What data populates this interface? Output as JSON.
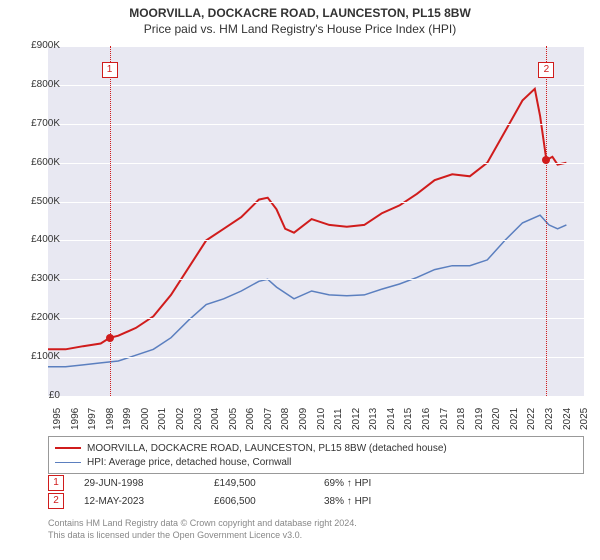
{
  "title": {
    "line1": "MOORVILLA, DOCKACRE ROAD, LAUNCESTON, PL15 8BW",
    "line2": "Price paid vs. HM Land Registry's House Price Index (HPI)"
  },
  "chart": {
    "background": "#e8e8f2",
    "grid_color": "#ffffff",
    "y": {
      "min": 0,
      "max": 900000,
      "step": 100000,
      "labels": [
        "£0",
        "£100K",
        "£200K",
        "£300K",
        "£400K",
        "£500K",
        "£600K",
        "£700K",
        "£800K",
        "£900K"
      ]
    },
    "x": {
      "min": 1995,
      "max": 2025.5,
      "step": 1,
      "labels": [
        "1995",
        "1996",
        "1997",
        "1998",
        "1999",
        "2000",
        "2001",
        "2002",
        "2003",
        "2004",
        "2005",
        "2006",
        "2007",
        "2008",
        "2009",
        "2010",
        "2011",
        "2012",
        "2013",
        "2014",
        "2015",
        "2016",
        "2017",
        "2018",
        "2019",
        "2020",
        "2021",
        "2022",
        "2023",
        "2024",
        "2025"
      ]
    },
    "series": [
      {
        "name": "MOORVILLA, DOCKACRE ROAD, LAUNCESTON, PL15 8BW (detached house)",
        "color": "#d01c1c",
        "width": 2,
        "points": [
          [
            1995,
            120000
          ],
          [
            1996,
            120000
          ],
          [
            1997,
            128000
          ],
          [
            1998,
            135000
          ],
          [
            1998.5,
            149500
          ],
          [
            1999,
            155000
          ],
          [
            2000,
            175000
          ],
          [
            2001,
            205000
          ],
          [
            2002,
            260000
          ],
          [
            2003,
            330000
          ],
          [
            2004,
            400000
          ],
          [
            2005,
            430000
          ],
          [
            2006,
            460000
          ],
          [
            2007,
            505000
          ],
          [
            2007.5,
            510000
          ],
          [
            2008,
            480000
          ],
          [
            2008.5,
            430000
          ],
          [
            2009,
            420000
          ],
          [
            2010,
            455000
          ],
          [
            2011,
            440000
          ],
          [
            2012,
            435000
          ],
          [
            2013,
            440000
          ],
          [
            2014,
            470000
          ],
          [
            2015,
            490000
          ],
          [
            2016,
            520000
          ],
          [
            2017,
            555000
          ],
          [
            2018,
            570000
          ],
          [
            2019,
            565000
          ],
          [
            2020,
            600000
          ],
          [
            2021,
            680000
          ],
          [
            2022,
            760000
          ],
          [
            2022.7,
            790000
          ],
          [
            2023,
            720000
          ],
          [
            2023.36,
            606500
          ],
          [
            2023.7,
            615000
          ],
          [
            2024,
            595000
          ],
          [
            2024.5,
            600000
          ]
        ]
      },
      {
        "name": "HPI: Average price, detached house, Cornwall",
        "color": "#5b7fbf",
        "width": 1.5,
        "points": [
          [
            1995,
            75000
          ],
          [
            1996,
            75000
          ],
          [
            1997,
            80000
          ],
          [
            1998,
            85000
          ],
          [
            1999,
            90000
          ],
          [
            2000,
            105000
          ],
          [
            2001,
            120000
          ],
          [
            2002,
            150000
          ],
          [
            2003,
            195000
          ],
          [
            2004,
            235000
          ],
          [
            2005,
            250000
          ],
          [
            2006,
            270000
          ],
          [
            2007,
            295000
          ],
          [
            2007.5,
            300000
          ],
          [
            2008,
            280000
          ],
          [
            2009,
            250000
          ],
          [
            2010,
            270000
          ],
          [
            2011,
            260000
          ],
          [
            2012,
            258000
          ],
          [
            2013,
            260000
          ],
          [
            2014,
            275000
          ],
          [
            2015,
            288000
          ],
          [
            2016,
            305000
          ],
          [
            2017,
            325000
          ],
          [
            2018,
            335000
          ],
          [
            2019,
            335000
          ],
          [
            2020,
            350000
          ],
          [
            2021,
            400000
          ],
          [
            2022,
            445000
          ],
          [
            2023,
            465000
          ],
          [
            2023.5,
            440000
          ],
          [
            2024,
            430000
          ],
          [
            2024.5,
            440000
          ]
        ]
      }
    ],
    "markers": [
      {
        "id": "1",
        "x": 1998.5,
        "y": 149500,
        "box_y": 62
      },
      {
        "id": "2",
        "x": 2023.36,
        "y": 606500,
        "box_y": 62
      }
    ]
  },
  "legend": [
    {
      "color": "#d01c1c",
      "width": 2,
      "label": "MOORVILLA, DOCKACRE ROAD, LAUNCESTON, PL15 8BW (detached house)"
    },
    {
      "color": "#5b7fbf",
      "width": 1.5,
      "label": "HPI: Average price, detached house, Cornwall"
    }
  ],
  "table": [
    {
      "id": "1",
      "date": "29-JUN-1998",
      "price": "£149,500",
      "pct": "69% ↑ HPI"
    },
    {
      "id": "2",
      "date": "12-MAY-2023",
      "price": "£606,500",
      "pct": "38% ↑ HPI"
    }
  ],
  "footer": {
    "line1": "Contains HM Land Registry data © Crown copyright and database right 2024.",
    "line2": "This data is licensed under the Open Government Licence v3.0."
  }
}
